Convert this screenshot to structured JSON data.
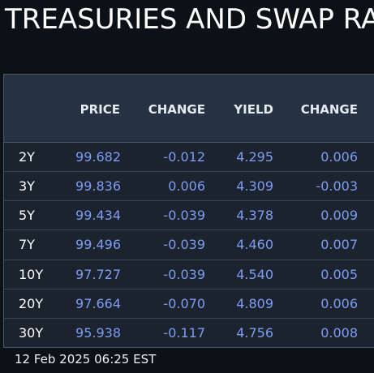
{
  "title": "TREASURIES AND SWAP RA",
  "columns": {
    "tenor": "",
    "price": "PRICE",
    "change1": "CHANGE",
    "yield": "YIELD",
    "change2": "CHANGE"
  },
  "rows": [
    {
      "tenor": "2Y",
      "price": "99.682",
      "change1": "-0.012",
      "yield": "4.295",
      "change2": "0.006"
    },
    {
      "tenor": "3Y",
      "price": "99.836",
      "change1": "0.006",
      "yield": "4.309",
      "change2": "-0.003"
    },
    {
      "tenor": "5Y",
      "price": "99.434",
      "change1": "-0.039",
      "yield": "4.378",
      "change2": "0.009"
    },
    {
      "tenor": "7Y",
      "price": "99.496",
      "change1": "-0.039",
      "yield": "4.460",
      "change2": "0.007"
    },
    {
      "tenor": "10Y",
      "price": "97.727",
      "change1": "-0.039",
      "yield": "4.540",
      "change2": "0.005"
    },
    {
      "tenor": "20Y",
      "price": "97.664",
      "change1": "-0.070",
      "yield": "4.809",
      "change2": "0.006"
    },
    {
      "tenor": "30Y",
      "price": "95.938",
      "change1": "-0.117",
      "yield": "4.756",
      "change2": "0.008"
    }
  ],
  "timestamp": "12 Feb 2025 06:25 EST",
  "colors": {
    "background": "#0c1117",
    "header_bg": "#263241",
    "row_bg": "#1b232e",
    "value_text": "#7f9cf2",
    "tenor_text": "#ffffff"
  }
}
